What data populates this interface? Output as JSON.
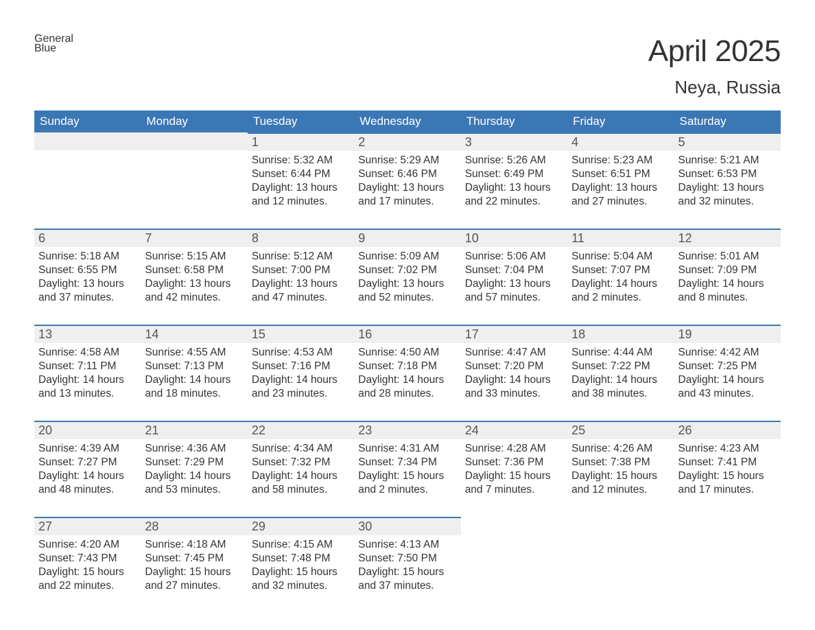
{
  "brand": {
    "part1": "General",
    "part2": "Blue"
  },
  "title": {
    "month": "April 2025",
    "location": "Neya, Russia"
  },
  "colors": {
    "accent": "#3c77b5",
    "header_text": "#ffffff",
    "daynum_bg": "#efefef",
    "text": "#333333",
    "page_bg": "#ffffff"
  },
  "calendar": {
    "type": "calendar-table",
    "weekday_labels": [
      "Sunday",
      "Monday",
      "Tuesday",
      "Wednesday",
      "Thursday",
      "Friday",
      "Saturday"
    ],
    "first_weekday_index": 2,
    "days_in_month": 30,
    "cell_fontsize_pt": 12,
    "header_fontsize_pt": 13,
    "days": [
      {
        "n": 1,
        "sunrise": "5:32 AM",
        "sunset": "6:44 PM",
        "daylight": "13 hours and 12 minutes."
      },
      {
        "n": 2,
        "sunrise": "5:29 AM",
        "sunset": "6:46 PM",
        "daylight": "13 hours and 17 minutes."
      },
      {
        "n": 3,
        "sunrise": "5:26 AM",
        "sunset": "6:49 PM",
        "daylight": "13 hours and 22 minutes."
      },
      {
        "n": 4,
        "sunrise": "5:23 AM",
        "sunset": "6:51 PM",
        "daylight": "13 hours and 27 minutes."
      },
      {
        "n": 5,
        "sunrise": "5:21 AM",
        "sunset": "6:53 PM",
        "daylight": "13 hours and 32 minutes."
      },
      {
        "n": 6,
        "sunrise": "5:18 AM",
        "sunset": "6:55 PM",
        "daylight": "13 hours and 37 minutes."
      },
      {
        "n": 7,
        "sunrise": "5:15 AM",
        "sunset": "6:58 PM",
        "daylight": "13 hours and 42 minutes."
      },
      {
        "n": 8,
        "sunrise": "5:12 AM",
        "sunset": "7:00 PM",
        "daylight": "13 hours and 47 minutes."
      },
      {
        "n": 9,
        "sunrise": "5:09 AM",
        "sunset": "7:02 PM",
        "daylight": "13 hours and 52 minutes."
      },
      {
        "n": 10,
        "sunrise": "5:06 AM",
        "sunset": "7:04 PM",
        "daylight": "13 hours and 57 minutes."
      },
      {
        "n": 11,
        "sunrise": "5:04 AM",
        "sunset": "7:07 PM",
        "daylight": "14 hours and 2 minutes."
      },
      {
        "n": 12,
        "sunrise": "5:01 AM",
        "sunset": "7:09 PM",
        "daylight": "14 hours and 8 minutes."
      },
      {
        "n": 13,
        "sunrise": "4:58 AM",
        "sunset": "7:11 PM",
        "daylight": "14 hours and 13 minutes."
      },
      {
        "n": 14,
        "sunrise": "4:55 AM",
        "sunset": "7:13 PM",
        "daylight": "14 hours and 18 minutes."
      },
      {
        "n": 15,
        "sunrise": "4:53 AM",
        "sunset": "7:16 PM",
        "daylight": "14 hours and 23 minutes."
      },
      {
        "n": 16,
        "sunrise": "4:50 AM",
        "sunset": "7:18 PM",
        "daylight": "14 hours and 28 minutes."
      },
      {
        "n": 17,
        "sunrise": "4:47 AM",
        "sunset": "7:20 PM",
        "daylight": "14 hours and 33 minutes."
      },
      {
        "n": 18,
        "sunrise": "4:44 AM",
        "sunset": "7:22 PM",
        "daylight": "14 hours and 38 minutes."
      },
      {
        "n": 19,
        "sunrise": "4:42 AM",
        "sunset": "7:25 PM",
        "daylight": "14 hours and 43 minutes."
      },
      {
        "n": 20,
        "sunrise": "4:39 AM",
        "sunset": "7:27 PM",
        "daylight": "14 hours and 48 minutes."
      },
      {
        "n": 21,
        "sunrise": "4:36 AM",
        "sunset": "7:29 PM",
        "daylight": "14 hours and 53 minutes."
      },
      {
        "n": 22,
        "sunrise": "4:34 AM",
        "sunset": "7:32 PM",
        "daylight": "14 hours and 58 minutes."
      },
      {
        "n": 23,
        "sunrise": "4:31 AM",
        "sunset": "7:34 PM",
        "daylight": "15 hours and 2 minutes."
      },
      {
        "n": 24,
        "sunrise": "4:28 AM",
        "sunset": "7:36 PM",
        "daylight": "15 hours and 7 minutes."
      },
      {
        "n": 25,
        "sunrise": "4:26 AM",
        "sunset": "7:38 PM",
        "daylight": "15 hours and 12 minutes."
      },
      {
        "n": 26,
        "sunrise": "4:23 AM",
        "sunset": "7:41 PM",
        "daylight": "15 hours and 17 minutes."
      },
      {
        "n": 27,
        "sunrise": "4:20 AM",
        "sunset": "7:43 PM",
        "daylight": "15 hours and 22 minutes."
      },
      {
        "n": 28,
        "sunrise": "4:18 AM",
        "sunset": "7:45 PM",
        "daylight": "15 hours and 27 minutes."
      },
      {
        "n": 29,
        "sunrise": "4:15 AM",
        "sunset": "7:48 PM",
        "daylight": "15 hours and 32 minutes."
      },
      {
        "n": 30,
        "sunrise": "4:13 AM",
        "sunset": "7:50 PM",
        "daylight": "15 hours and 37 minutes."
      }
    ],
    "labels": {
      "sunrise": "Sunrise: ",
      "sunset": "Sunset: ",
      "daylight": "Daylight: "
    }
  }
}
